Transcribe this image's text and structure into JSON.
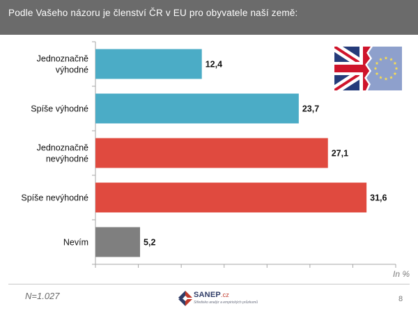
{
  "header": {
    "title": "Podle Vašeho názoru je členství ČR v EU pro obyvatele naší země:"
  },
  "chart_data": {
    "type": "bar",
    "orientation": "horizontal",
    "title": "Podle Vašeho názoru je členství ČR v EU pro obyvatele naší země:",
    "categories": [
      [
        "Jednoznačně",
        "výhodné"
      ],
      [
        "Spíše výhodné"
      ],
      [
        "Jednoznačně",
        "nevýhodné"
      ],
      [
        "Spíše nevýhodné"
      ],
      [
        "Nevím"
      ]
    ],
    "values": [
      12.4,
      23.7,
      27.1,
      31.6,
      5.2
    ],
    "value_labels": [
      "12,4",
      "23,7",
      "27,1",
      "31,6",
      "5,2"
    ],
    "bar_colors": [
      "#4bacc6",
      "#4bacc6",
      "#e04a3f",
      "#e04a3f",
      "#7f7f7f"
    ],
    "xlim": [
      0,
      35
    ],
    "tick_step": 5,
    "unit_label": "In %",
    "grid": false,
    "legend": "none"
  },
  "footer": {
    "sample_size": "N=1.027",
    "page_number": "8",
    "logo_name": "SANEP",
    "logo_tld": ".cz",
    "logo_tagline": "Středisko analýz a empirických průzkumů"
  },
  "icons": {
    "logo": "sanep-logo-icon",
    "flag": "uk-eu-torn-flag-icon"
  },
  "colors": {
    "header_bg": "#6b6b6b",
    "positive": "#4bacc6",
    "negative": "#e04a3f",
    "neutral": "#7f7f7f"
  }
}
